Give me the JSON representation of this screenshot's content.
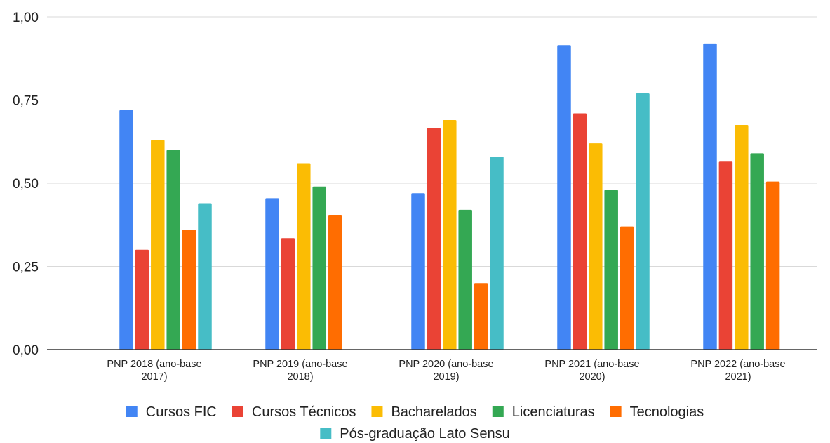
{
  "chart_data": {
    "type": "bar",
    "title": "",
    "xlabel": "",
    "ylabel": "",
    "ylim": [
      0,
      1
    ],
    "yticks": [
      "0,00",
      "0,25",
      "0,50",
      "0,75",
      "1,00"
    ],
    "ytick_values": [
      0,
      0.25,
      0.5,
      0.75,
      1.0
    ],
    "grid": true,
    "legend_position": "bottom",
    "categories": [
      [
        "PNP 2018 (ano-base",
        "2017)"
      ],
      [
        "PNP 2019 (ano-base",
        "2018)"
      ],
      [
        "PNP 2020 (ano-base",
        "2019)"
      ],
      [
        "PNP 2021 (ano-base",
        "2020)"
      ],
      [
        "PNP 2022 (ano-base",
        "2021)"
      ]
    ],
    "series": [
      {
        "name": "Cursos FIC",
        "color": "#4285F4",
        "values": [
          0.72,
          0.455,
          0.47,
          0.915,
          0.92
        ]
      },
      {
        "name": "Cursos Técnicos",
        "color": "#EA4335",
        "values": [
          0.3,
          0.335,
          0.665,
          0.71,
          0.565
        ]
      },
      {
        "name": "Bacharelados",
        "color": "#FBBC04",
        "values": [
          0.63,
          0.56,
          0.69,
          0.62,
          0.675
        ]
      },
      {
        "name": "Licenciaturas",
        "color": "#34A853",
        "values": [
          0.6,
          0.49,
          0.42,
          0.48,
          0.59
        ]
      },
      {
        "name": "Tecnologias",
        "color": "#FF6D01",
        "values": [
          0.36,
          0.405,
          0.2,
          0.37,
          0.505
        ]
      },
      {
        "name": "Pós-graduação Lato Sensu",
        "color": "#46BDC6",
        "values": [
          0.44,
          null,
          0.58,
          0.77,
          null
        ]
      }
    ]
  }
}
